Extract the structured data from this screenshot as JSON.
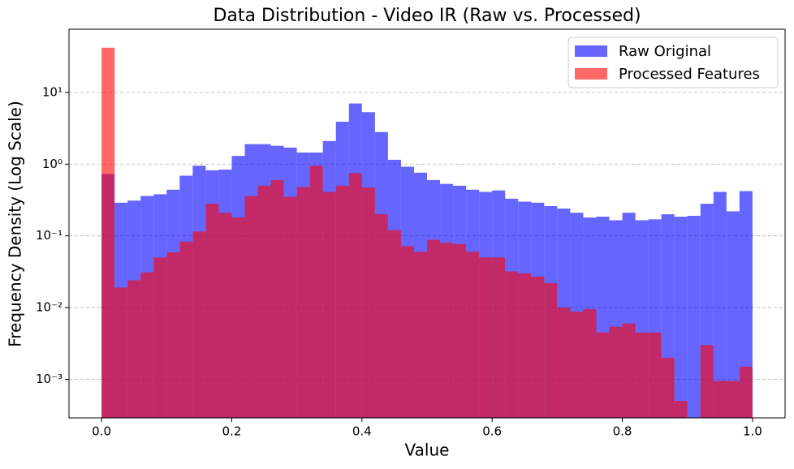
{
  "chart_data": {
    "type": "histogram",
    "title": "Data Distribution - Video IR (Raw vs. Processed)",
    "x_label": "Value",
    "y_label": "Frequency Density (Log Scale)",
    "bins": [
      0,
      0.02,
      0.04,
      0.06,
      0.08,
      0.1,
      0.12,
      0.14,
      0.16,
      0.18,
      0.2,
      0.22,
      0.24,
      0.26,
      0.28,
      0.3,
      0.32,
      0.34,
      0.36,
      0.38,
      0.4,
      0.42,
      0.44,
      0.46,
      0.48,
      0.5,
      0.52,
      0.54,
      0.56,
      0.58,
      0.6,
      0.62,
      0.64,
      0.66,
      0.68,
      0.7,
      0.72,
      0.74,
      0.76,
      0.78,
      0.8,
      0.82,
      0.84,
      0.86,
      0.88,
      0.9,
      0.92,
      0.94,
      0.96,
      0.98,
      1.0
    ],
    "series": [
      {
        "name": "Raw Original",
        "color": "#0000ff",
        "values": [
          0.73,
          0.29,
          0.31,
          0.36,
          0.38,
          0.44,
          0.69,
          0.95,
          0.82,
          0.84,
          1.3,
          1.9,
          1.9,
          1.8,
          1.7,
          1.45,
          1.45,
          2.1,
          3.9,
          7.0,
          5.3,
          2.8,
          1.15,
          0.92,
          0.76,
          0.6,
          0.53,
          0.5,
          0.44,
          0.41,
          0.43,
          0.33,
          0.3,
          0.29,
          0.26,
          0.24,
          0.21,
          0.18,
          0.185,
          0.165,
          0.21,
          0.165,
          0.17,
          0.2,
          0.185,
          0.19,
          0.28,
          0.41,
          0.22,
          0.42
        ]
      },
      {
        "name": "Processed Features",
        "color": "#ff0000",
        "values": [
          42,
          0.019,
          0.024,
          0.031,
          0.05,
          0.059,
          0.083,
          0.115,
          0.28,
          0.21,
          0.18,
          0.36,
          0.5,
          0.6,
          0.35,
          0.48,
          0.95,
          0.41,
          0.5,
          0.75,
          0.47,
          0.2,
          0.12,
          0.072,
          0.06,
          0.088,
          0.08,
          0.077,
          0.06,
          0.05,
          0.05,
          0.032,
          0.03,
          0.027,
          0.022,
          0.01,
          0.0088,
          0.0095,
          0.0045,
          0.0054,
          0.006,
          0.0045,
          0.0045,
          0.002,
          0.0005,
          null,
          0.003,
          0.00095,
          0.00095,
          0.0015
        ]
      }
    ],
    "opacity": 0.6,
    "xlim": [
      -0.05,
      1.05
    ],
    "xticks": [
      {
        "value": 0,
        "label": "0.0"
      },
      {
        "value": 0.2,
        "label": "0.2"
      },
      {
        "value": 0.4,
        "label": "0.4"
      },
      {
        "value": 0.6,
        "label": "0.6"
      },
      {
        "value": 0.8,
        "label": "0.8"
      },
      {
        "value": 1.0,
        "label": "1.0"
      }
    ],
    "ylim": [
      0.00029,
      76
    ],
    "yticks": [
      {
        "value": 0.001,
        "label": "10⁻³"
      },
      {
        "value": 0.01,
        "label": "10⁻²"
      },
      {
        "value": 0.1,
        "label": "10⁻¹"
      },
      {
        "value": 1,
        "label": "10⁰"
      },
      {
        "value": 10,
        "label": "10¹"
      }
    ],
    "y_scale": "log",
    "grid": "y",
    "legend": "upper right"
  }
}
